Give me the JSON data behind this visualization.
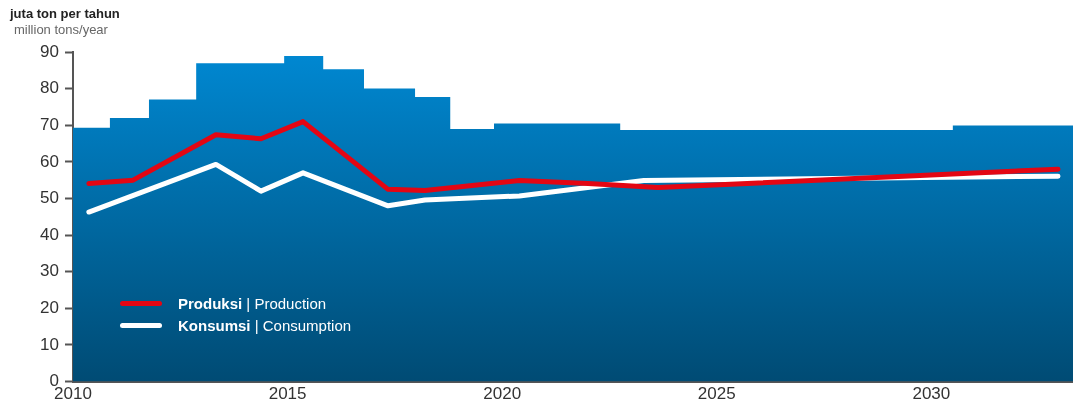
{
  "chart_data": {
    "type": "line",
    "title": "juta ton per tahun",
    "subtitle": "million tons/year",
    "xlim": [
      2010,
      2033.3
    ],
    "xticks": [
      2010,
      2015,
      2020,
      2025,
      2030
    ],
    "ylim": [
      0,
      90
    ],
    "yticks": [
      0,
      10,
      20,
      30,
      40,
      50,
      60,
      70,
      80,
      90
    ],
    "grid": false,
    "legend": "bottom left",
    "marker": "none",
    "line_style": "solid",
    "series": [
      {
        "type": "area",
        "color": "#0088d2",
        "x": [
          2010,
          2010.86,
          2011.77,
          2012.87,
          2014.92,
          2015.83,
          2016.78,
          2017.97,
          2018.79,
          2019.81,
          2022.75,
          2030.5,
          2033.3
        ],
        "values": [
          69.3,
          72.0,
          77.0,
          86.9,
          88.9,
          85.3,
          80.0,
          77.7,
          69.0,
          70.5,
          68.7,
          69.9,
          69.9
        ]
      },
      {
        "name": "Produksi | Production",
        "color": "#e30613",
        "x": [
          2010.37,
          2011.4,
          2013.33,
          2014.38,
          2015.36,
          2017.34,
          2018.2,
          2020.4,
          2022,
          2023.63,
          2032.95
        ],
        "values": [
          54.1,
          55.0,
          67.4,
          66.3,
          71.0,
          52.5,
          52.2,
          54.9,
          54.1,
          53.0,
          58.0
        ]
      },
      {
        "name": "Konsumsi | Consumption",
        "color": "#ffffff",
        "x": [
          2010.37,
          2013.33,
          2014.38,
          2015.36,
          2017.34,
          2018.2,
          2020.4,
          2023.3,
          2032.95
        ],
        "values": [
          46.3,
          59.3,
          52.0,
          57.0,
          48.0,
          49.6,
          50.7,
          54.9,
          56.1
        ]
      }
    ]
  }
}
